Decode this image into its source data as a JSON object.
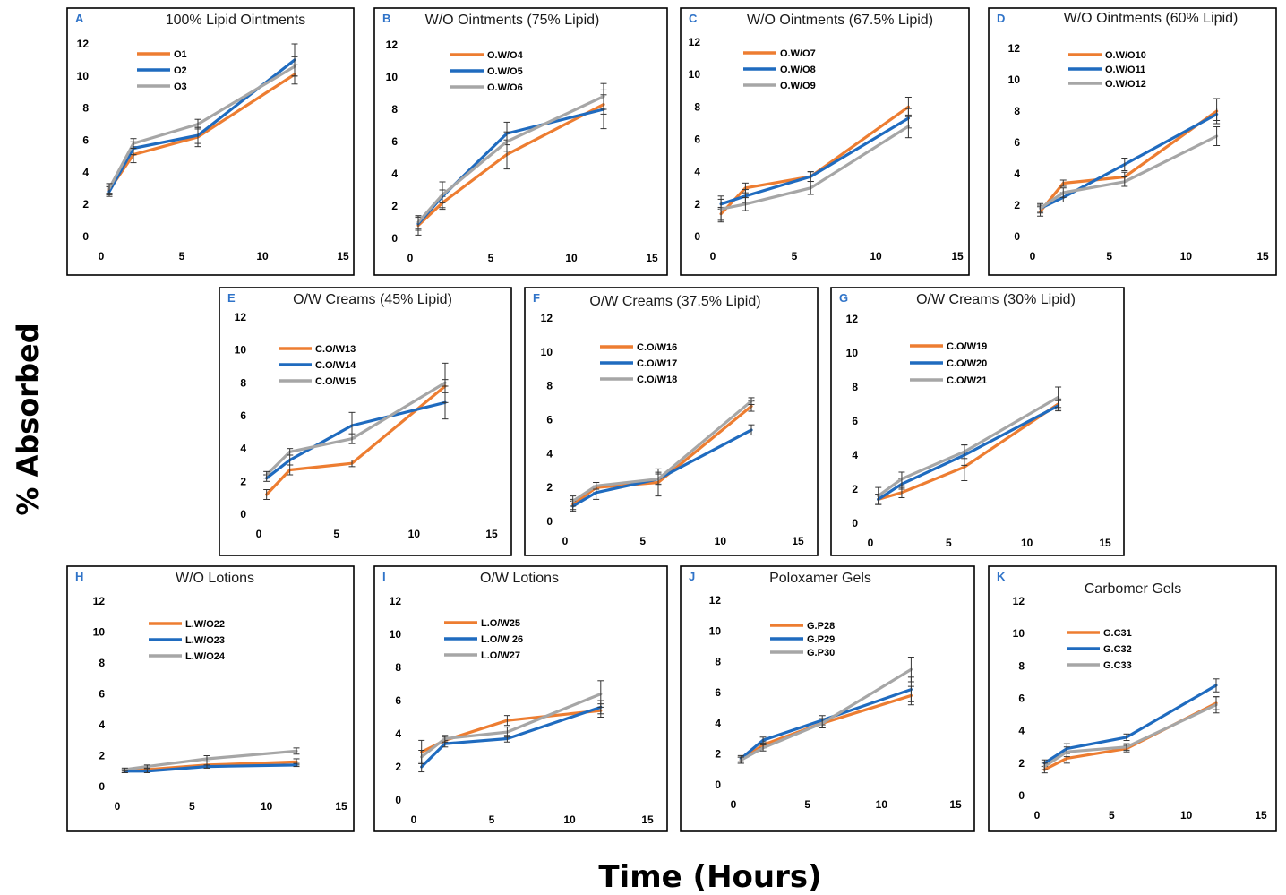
{
  "figure": {
    "ylabel": "% Absorbed",
    "xlabel": "Time (Hours)"
  },
  "colors": {
    "series": [
      "#ed7d31",
      "#1f6bbf",
      "#a6a6a6"
    ],
    "error_bar": "#333333",
    "frame": "#000000"
  },
  "chart_data": [
    {
      "type": "line",
      "letter": "A",
      "title": "100% Lipid Ointments",
      "x": [
        0.5,
        2,
        6,
        12
      ],
      "xticks": [
        0,
        5,
        10,
        15
      ],
      "yticks": [
        0,
        2,
        4,
        6,
        8,
        10,
        12
      ],
      "xlim": [
        0,
        15
      ],
      "ylim": [
        0,
        12
      ],
      "series": [
        {
          "name": "O1",
          "values": [
            2.9,
            5.1,
            6.2,
            10.1
          ],
          "err": [
            0.3,
            0.5,
            0.6,
            0.6
          ]
        },
        {
          "name": "O2",
          "values": [
            2.8,
            5.5,
            6.3,
            11.0
          ],
          "err": [
            0.3,
            0.4,
            0.5,
            1.0
          ]
        },
        {
          "name": "O3",
          "values": [
            3.0,
            5.8,
            7.0,
            10.6
          ],
          "err": [
            0.3,
            0.3,
            0.3,
            0.6
          ]
        }
      ]
    },
    {
      "type": "line",
      "letter": "B",
      "title": "W/O Ointments (75% Lipid)",
      "x": [
        0.5,
        2,
        6,
        12
      ],
      "xticks": [
        0,
        5,
        10,
        15
      ],
      "yticks": [
        0,
        2,
        4,
        6,
        8,
        10,
        12
      ],
      "xlim": [
        0,
        15
      ],
      "ylim": [
        0,
        12
      ],
      "series": [
        {
          "name": "O.W/O4",
          "values": [
            0.8,
            2.2,
            5.2,
            8.3
          ],
          "err": [
            0.6,
            0.4,
            0.9,
            0.6
          ]
        },
        {
          "name": "O.W/O5",
          "values": [
            0.9,
            2.6,
            6.5,
            8.0
          ],
          "err": [
            0.4,
            0.4,
            0.7,
            1.2
          ]
        },
        {
          "name": "O.W/O6",
          "values": [
            1.0,
            2.7,
            6.0,
            8.8
          ],
          "err": [
            0.4,
            0.8,
            0.6,
            0.8
          ]
        }
      ]
    },
    {
      "type": "line",
      "letter": "C",
      "title": "W/O Ointments (67.5% Lipid)",
      "x": [
        0.5,
        2,
        6,
        12
      ],
      "xticks": [
        0,
        5,
        10,
        15
      ],
      "yticks": [
        0,
        2,
        4,
        6,
        8,
        10,
        12
      ],
      "xlim": [
        0,
        15
      ],
      "ylim": [
        0,
        12
      ],
      "series": [
        {
          "name": "O.W/O7",
          "values": [
            1.4,
            3.0,
            3.7,
            8.0
          ],
          "err": [
            0.4,
            0.3,
            0.3,
            0.6
          ]
        },
        {
          "name": "O.W/O8",
          "values": [
            2.0,
            2.5,
            3.7,
            7.3
          ],
          "err": [
            0.3,
            0.4,
            0.3,
            0.6
          ]
        },
        {
          "name": "O.W/O9",
          "values": [
            1.7,
            2.0,
            3.0,
            6.8
          ],
          "err": [
            0.8,
            0.4,
            0.4,
            0.7
          ]
        }
      ]
    },
    {
      "type": "line",
      "letter": "D",
      "title": "W/O Ointments (60% Lipid)",
      "x": [
        0.5,
        2,
        6,
        12
      ],
      "xticks": [
        0,
        5,
        10,
        15
      ],
      "yticks": [
        0,
        2,
        4,
        6,
        8,
        10,
        12
      ],
      "xlim": [
        0,
        15
      ],
      "ylim": [
        0,
        12
      ],
      "series": [
        {
          "name": "O.W/O10",
          "values": [
            1.6,
            3.4,
            3.8,
            8.0
          ],
          "err": [
            0.3,
            0.2,
            0.3,
            0.8
          ]
        },
        {
          "name": "O.W/O11",
          "values": [
            1.8,
            2.5,
            4.6,
            7.8
          ],
          "err": [
            0.2,
            0.3,
            0.4,
            0.4
          ]
        },
        {
          "name": "O.W/O12",
          "values": [
            1.8,
            2.8,
            3.5,
            6.4
          ],
          "err": [
            0.3,
            0.3,
            0.3,
            0.6
          ]
        }
      ]
    },
    {
      "type": "line",
      "letter": "E",
      "title": "O/W Creams (45% Lipid)",
      "x": [
        0.5,
        2,
        6,
        12
      ],
      "xticks": [
        0,
        5,
        10,
        15
      ],
      "yticks": [
        0,
        2,
        4,
        6,
        8,
        10,
        12
      ],
      "xlim": [
        0,
        15
      ],
      "ylim": [
        0,
        12
      ],
      "series": [
        {
          "name": "C.O/W13",
          "values": [
            1.2,
            2.7,
            3.1,
            7.8
          ],
          "err": [
            0.3,
            0.3,
            0.2,
            0.4
          ]
        },
        {
          "name": "C.O/W14",
          "values": [
            2.2,
            3.3,
            5.4,
            6.8
          ],
          "err": [
            0.2,
            0.3,
            0.8,
            1.0
          ]
        },
        {
          "name": "C.O/W15",
          "values": [
            2.4,
            3.8,
            4.6,
            8.0
          ],
          "err": [
            0.2,
            0.2,
            0.3,
            1.2
          ]
        }
      ]
    },
    {
      "type": "line",
      "letter": "F",
      "title": "O/W Creams (37.5% Lipid)",
      "x": [
        0.5,
        2,
        6,
        12
      ],
      "xticks": [
        0,
        5,
        10,
        15
      ],
      "yticks": [
        0,
        2,
        4,
        6,
        8,
        10,
        12
      ],
      "xlim": [
        0,
        15
      ],
      "ylim": [
        0,
        12
      ],
      "series": [
        {
          "name": "C.O/W16",
          "values": [
            1.0,
            2.0,
            2.3,
            6.8
          ],
          "err": [
            0.3,
            0.3,
            0.8,
            0.3
          ]
        },
        {
          "name": "C.O/W17",
          "values": [
            0.9,
            1.7,
            2.5,
            5.4
          ],
          "err": [
            0.3,
            0.4,
            0.4,
            0.3
          ]
        },
        {
          "name": "C.O/W18",
          "values": [
            1.2,
            2.1,
            2.5,
            7.1
          ],
          "err": [
            0.3,
            0.2,
            0.3,
            0.2
          ]
        }
      ]
    },
    {
      "type": "line",
      "letter": "G",
      "title": "O/W Creams (30% Lipid)",
      "x": [
        0.5,
        2,
        6,
        12
      ],
      "xticks": [
        0,
        5,
        10,
        15
      ],
      "yticks": [
        0,
        2,
        4,
        6,
        8,
        10,
        12
      ],
      "xlim": [
        0,
        15
      ],
      "ylim": [
        0,
        12
      ],
      "series": [
        {
          "name": "C.O/W19",
          "values": [
            1.4,
            1.8,
            3.3,
            7.0
          ],
          "err": [
            0.3,
            0.3,
            0.8,
            0.3
          ]
        },
        {
          "name": "C.O/W20",
          "values": [
            1.4,
            2.3,
            4.0,
            6.9
          ],
          "err": [
            0.3,
            0.3,
            0.6,
            0.3
          ]
        },
        {
          "name": "C.O/W21",
          "values": [
            1.6,
            2.6,
            4.2,
            7.4
          ],
          "err": [
            0.5,
            0.4,
            0.4,
            0.6
          ]
        }
      ]
    },
    {
      "type": "line",
      "letter": "H",
      "title": "W/O Lotions",
      "x": [
        0.5,
        2,
        6,
        12
      ],
      "xticks": [
        0,
        5,
        10,
        15
      ],
      "yticks": [
        0,
        2,
        4,
        6,
        8,
        10,
        12
      ],
      "xlim": [
        0,
        15
      ],
      "ylim": [
        0,
        12
      ],
      "series": [
        {
          "name": "L.W/O22",
          "values": [
            1.0,
            1.1,
            1.4,
            1.6
          ],
          "err": [
            0.1,
            0.1,
            0.2,
            0.2
          ]
        },
        {
          "name": "L.W/O23",
          "values": [
            1.0,
            1.0,
            1.3,
            1.4
          ],
          "err": [
            0.1,
            0.1,
            0.1,
            0.1
          ]
        },
        {
          "name": "L.W/O24",
          "values": [
            1.1,
            1.3,
            1.8,
            2.3
          ],
          "err": [
            0.1,
            0.1,
            0.2,
            0.2
          ]
        }
      ]
    },
    {
      "type": "line",
      "letter": "I",
      "title": "O/W Lotions",
      "x": [
        0.5,
        2,
        6,
        12
      ],
      "xticks": [
        0,
        5,
        10,
        15
      ],
      "yticks": [
        0,
        2,
        4,
        6,
        8,
        10,
        12
      ],
      "xlim": [
        0,
        15
      ],
      "ylim": [
        0,
        12
      ],
      "series": [
        {
          "name": "L.O/W25",
          "values": [
            2.9,
            3.6,
            4.8,
            5.4
          ],
          "err": [
            0.7,
            0.2,
            0.3,
            0.4
          ]
        },
        {
          "name": "L.O/W 26",
          "values": [
            2.0,
            3.4,
            3.7,
            5.6
          ],
          "err": [
            0.3,
            0.2,
            0.2,
            0.4
          ]
        },
        {
          "name": "L.O/W27",
          "values": [
            2.6,
            3.7,
            4.1,
            6.4
          ],
          "err": [
            0.4,
            0.2,
            0.3,
            0.8
          ]
        }
      ]
    },
    {
      "type": "line",
      "letter": "J",
      "title": "Poloxamer Gels",
      "x": [
        0.5,
        2,
        6,
        12
      ],
      "xticks": [
        0,
        5,
        10,
        15
      ],
      "yticks": [
        0,
        2,
        4,
        6,
        8,
        10,
        12
      ],
      "xlim": [
        0,
        15
      ],
      "ylim": [
        0,
        12
      ],
      "series": [
        {
          "name": "G.P28",
          "values": [
            1.6,
            2.6,
            4.0,
            5.8
          ],
          "err": [
            0.2,
            0.2,
            0.3,
            0.6
          ]
        },
        {
          "name": "G.P29",
          "values": [
            1.7,
            2.9,
            4.2,
            6.2
          ],
          "err": [
            0.2,
            0.2,
            0.3,
            0.8
          ]
        },
        {
          "name": "G.P30",
          "values": [
            1.6,
            2.4,
            4.0,
            7.5
          ],
          "err": [
            0.2,
            0.2,
            0.3,
            0.8
          ]
        }
      ]
    },
    {
      "type": "line",
      "letter": "K",
      "title": "Carbomer Gels",
      "x": [
        0.5,
        2,
        6,
        12
      ],
      "xticks": [
        0,
        5,
        10,
        15
      ],
      "yticks": [
        0,
        2,
        4,
        6,
        8,
        10,
        12
      ],
      "xlim": [
        0,
        15
      ],
      "ylim": [
        0,
        12
      ],
      "series": [
        {
          "name": "G.C31",
          "values": [
            1.6,
            2.3,
            2.9,
            5.7
          ],
          "err": [
            0.2,
            0.3,
            0.2,
            0.4
          ]
        },
        {
          "name": "G.C32",
          "values": [
            2.0,
            2.9,
            3.6,
            6.8
          ],
          "err": [
            0.2,
            0.3,
            0.2,
            0.4
          ]
        },
        {
          "name": "G.C33",
          "values": [
            1.8,
            2.7,
            3.0,
            5.6
          ],
          "err": [
            0.2,
            0.3,
            0.2,
            0.5
          ]
        }
      ]
    }
  ]
}
